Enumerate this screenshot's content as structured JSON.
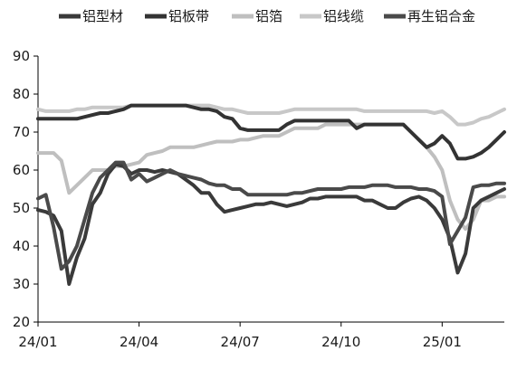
{
  "chart_data": {
    "type": "line",
    "grid": false,
    "legend_position": "top",
    "ylim": [
      20,
      90
    ],
    "yticks": [
      20,
      30,
      40,
      50,
      60,
      70,
      80,
      90
    ],
    "x_tick_labels": [
      "24/01",
      "24/04",
      "24/07",
      "24/10",
      "25/01"
    ],
    "x_tick_positions": [
      0,
      13,
      26,
      39,
      52
    ],
    "x_range": [
      0,
      60
    ],
    "series": [
      {
        "name": "铝型材",
        "color": "#3a3a3a",
        "x": [
          0,
          1,
          2,
          3,
          4,
          5,
          6,
          7,
          8,
          9,
          10,
          11,
          12,
          13,
          14,
          15,
          16,
          17,
          18,
          19,
          20,
          21,
          22,
          23,
          24,
          25,
          26,
          27,
          28,
          29,
          30,
          31,
          32,
          33,
          34,
          35,
          36,
          37,
          38,
          39,
          40,
          41,
          42,
          43,
          44,
          45,
          46,
          47,
          48,
          49,
          50,
          51,
          52,
          53,
          54,
          55,
          56,
          57,
          58,
          59,
          60
        ],
        "values": [
          49.5,
          49,
          48,
          44,
          30,
          37,
          42,
          51,
          54,
          59,
          61.5,
          61,
          59,
          60,
          60,
          59.5,
          60,
          59.5,
          59,
          57.5,
          56,
          54,
          54,
          51,
          49,
          49.5,
          50,
          50.5,
          51,
          51,
          51.5,
          51,
          50.5,
          51,
          51.5,
          52.5,
          52.5,
          53,
          53,
          53,
          53,
          53,
          52,
          52,
          51,
          50,
          50,
          51.5,
          52.5,
          53,
          52,
          50,
          47,
          42,
          33,
          38,
          50,
          52,
          53,
          54,
          55
        ]
      },
      {
        "name": "铝板带",
        "color": "#333333",
        "x": [
          0,
          1,
          2,
          3,
          4,
          5,
          6,
          7,
          8,
          9,
          10,
          11,
          12,
          13,
          14,
          15,
          16,
          17,
          18,
          19,
          20,
          21,
          22,
          23,
          24,
          25,
          26,
          27,
          28,
          29,
          30,
          31,
          32,
          33,
          34,
          35,
          36,
          37,
          38,
          39,
          40,
          41,
          42,
          43,
          44,
          45,
          46,
          47,
          48,
          49,
          50,
          51,
          52,
          53,
          54,
          55,
          56,
          57,
          58,
          59,
          60
        ],
        "values": [
          73.5,
          73.5,
          73.5,
          73.5,
          73.5,
          73.5,
          74,
          74.5,
          75,
          75,
          75.5,
          76,
          77,
          77,
          77,
          77,
          77,
          77,
          77,
          77,
          76.5,
          76,
          76,
          75.5,
          74,
          73.5,
          71,
          70.5,
          70.5,
          70.5,
          70.5,
          70.5,
          72,
          73,
          73,
          73,
          73,
          73,
          73,
          73,
          73,
          71,
          72,
          72,
          72,
          72,
          72,
          72,
          70,
          68,
          66,
          67,
          69,
          67,
          63,
          63,
          63.5,
          64.5,
          66,
          68,
          70
        ]
      },
      {
        "name": "铝箔",
        "color": "#bfbfbf",
        "x": [
          0,
          1,
          2,
          3,
          4,
          5,
          6,
          7,
          8,
          9,
          10,
          11,
          12,
          13,
          14,
          15,
          16,
          17,
          18,
          19,
          20,
          21,
          22,
          23,
          24,
          25,
          26,
          27,
          28,
          29,
          30,
          31,
          32,
          33,
          34,
          35,
          36,
          37,
          38,
          39,
          40,
          41,
          42,
          43,
          44,
          45,
          46,
          47,
          48,
          49,
          50,
          51,
          52,
          53,
          54,
          55,
          56,
          57,
          58,
          59,
          60
        ],
        "values": [
          64.5,
          64.5,
          64.5,
          62.5,
          54,
          56,
          58,
          60,
          60,
          60,
          61,
          61,
          61.5,
          62,
          64,
          64.5,
          65,
          66,
          66,
          66,
          66,
          66.5,
          67,
          67.5,
          67.5,
          67.5,
          68,
          68,
          68.5,
          69,
          69,
          69,
          70,
          71,
          71,
          71,
          71,
          72,
          72,
          72,
          72,
          72,
          72,
          72,
          72,
          72,
          72,
          72,
          70,
          68,
          66,
          63.5,
          60,
          52,
          47,
          44.5,
          47,
          52,
          52,
          53,
          53
        ]
      },
      {
        "name": "铝线缆",
        "color": "#c8c8c8",
        "x": [
          0,
          1,
          2,
          3,
          4,
          5,
          6,
          7,
          8,
          9,
          10,
          11,
          12,
          13,
          14,
          15,
          16,
          17,
          18,
          19,
          20,
          21,
          22,
          23,
          24,
          25,
          26,
          27,
          28,
          29,
          30,
          31,
          32,
          33,
          34,
          35,
          36,
          37,
          38,
          39,
          40,
          41,
          42,
          43,
          44,
          45,
          46,
          47,
          48,
          49,
          50,
          51,
          52,
          53,
          54,
          55,
          56,
          57,
          58,
          59,
          60
        ],
        "values": [
          76,
          75.5,
          75.5,
          75.5,
          75.5,
          76,
          76,
          76.5,
          76.5,
          76.5,
          76.5,
          76.5,
          77,
          77,
          77,
          77,
          77,
          77,
          77,
          77,
          77,
          77,
          77,
          76.5,
          76,
          76,
          75.5,
          75,
          75,
          75,
          75,
          75,
          75.5,
          76,
          76,
          76,
          76,
          76,
          76,
          76,
          76,
          76,
          75.5,
          75.5,
          75.5,
          75.5,
          75.5,
          75.5,
          75.5,
          75.5,
          75.5,
          75,
          75.5,
          74,
          72,
          72,
          72.5,
          73.5,
          74,
          75,
          76
        ]
      },
      {
        "name": "再生铝合金",
        "color": "#4a4a4a",
        "x": [
          0,
          1,
          2,
          3,
          4,
          5,
          6,
          7,
          8,
          9,
          10,
          11,
          12,
          13,
          14,
          15,
          16,
          17,
          18,
          19,
          20,
          21,
          22,
          23,
          24,
          25,
          26,
          27,
          28,
          29,
          30,
          31,
          32,
          33,
          34,
          35,
          36,
          37,
          38,
          39,
          40,
          41,
          42,
          43,
          44,
          45,
          46,
          47,
          48,
          49,
          50,
          51,
          52,
          53,
          54,
          55,
          56,
          57,
          58,
          59,
          60
        ],
        "values": [
          52.5,
          53.5,
          45,
          34,
          36,
          40,
          47,
          54,
          58,
          60,
          62,
          62,
          57.5,
          59,
          57,
          58,
          59,
          60,
          59,
          58.5,
          58,
          57.5,
          56.5,
          56,
          56,
          55,
          55,
          53.5,
          53.5,
          53.5,
          53.5,
          53.5,
          53.5,
          54,
          54,
          54.5,
          55,
          55,
          55,
          55,
          55.5,
          55.5,
          55.5,
          56,
          56,
          56,
          55.5,
          55.5,
          55.5,
          55,
          55,
          54.5,
          53,
          40.5,
          44,
          47.5,
          55.5,
          56,
          56,
          56.5,
          56.5
        ]
      }
    ]
  }
}
